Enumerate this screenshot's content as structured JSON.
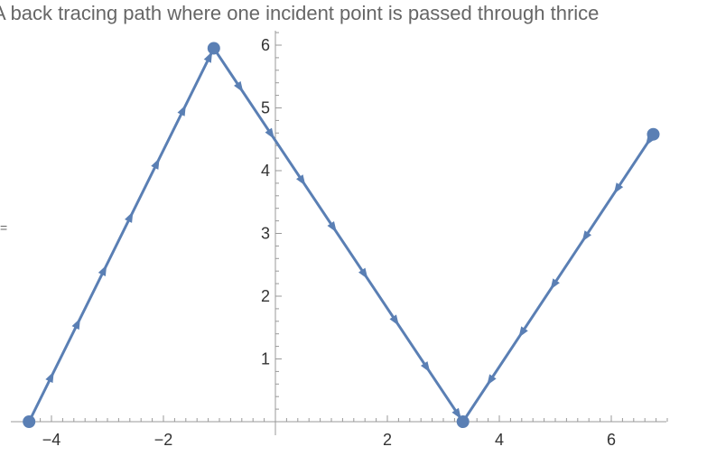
{
  "left_mark": "=",
  "chart_data": {
    "type": "line",
    "title": "A back tracing path where one incident point is passed through thrice",
    "xlabel": "",
    "ylabel": "",
    "xlim": [
      -4.5,
      7.0
    ],
    "ylim": [
      0,
      6.3
    ],
    "x_ticks": [
      -4,
      -2,
      2,
      4,
      6
    ],
    "x_tick_labels": [
      "−4",
      "−2",
      "2",
      "4",
      "6"
    ],
    "y_ticks": [
      1,
      2,
      3,
      4,
      5,
      6
    ],
    "y_tick_labels": [
      "1",
      "2",
      "3",
      "4",
      "5",
      "6"
    ],
    "grid": false,
    "color": "#5a7fb4",
    "points": [
      {
        "x": -4.4,
        "y": 0
      },
      {
        "x": -1.1,
        "y": 5.95
      },
      {
        "x": 3.35,
        "y": 0
      },
      {
        "x": 6.75,
        "y": 4.58
      }
    ],
    "arrow_directions": [
      "forward",
      "forward",
      "backward"
    ]
  }
}
